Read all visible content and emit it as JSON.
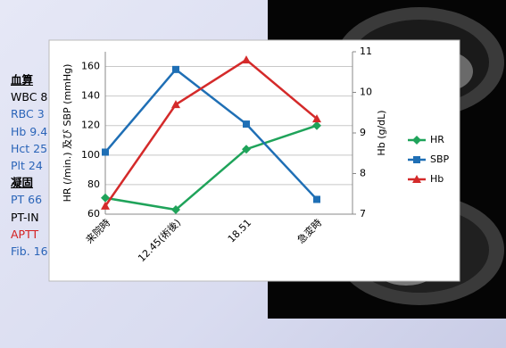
{
  "slide_text": [
    {
      "text": "血算",
      "color": "#000000",
      "heading": true
    },
    {
      "text": "WBC 8",
      "color": "#000000"
    },
    {
      "text": "RBC 3",
      "color": "#2a64b8"
    },
    {
      "text": "Hb 9.4",
      "color": "#2a64b8"
    },
    {
      "text": "Hct 25",
      "color": "#2a64b8"
    },
    {
      "text": "Plt 24",
      "color": "#2a64b8"
    },
    {
      "text": "凝固",
      "color": "#000000",
      "heading": true
    },
    {
      "text": "PT 66",
      "color": "#2a64b8"
    },
    {
      "text": "PT-IN",
      "color": "#000000"
    },
    {
      "text": "APTT",
      "color": "#d42020"
    },
    {
      "text": "Fib. 16",
      "color": "#2a64b8"
    }
  ],
  "chart_data": {
    "type": "line",
    "categories": [
      "来院時",
      "12.45(術後)",
      "18.51",
      "急変時"
    ],
    "ylabel": "HR (/min.) 及び SBP (mmHg)",
    "y2label": "Hb (g/dL)",
    "ylim": [
      60,
      170
    ],
    "yticks": [
      60,
      80,
      100,
      120,
      140,
      160
    ],
    "y2lim": [
      7,
      11
    ],
    "y2ticks": [
      7,
      8,
      9,
      10,
      11
    ],
    "grid": true,
    "legend": "right",
    "series": [
      {
        "name": "HR",
        "color": "#1fa35a",
        "marker": "diamond",
        "values": [
          71,
          63,
          104,
          120
        ]
      },
      {
        "name": "SBP",
        "color": "#1f6fb5",
        "marker": "square",
        "values": [
          102,
          158,
          121,
          70
        ]
      },
      {
        "name": "Hb",
        "color": "#d42a2a",
        "marker": "triangle",
        "axis": "y2",
        "values": [
          7.2,
          9.7,
          10.8,
          9.35
        ]
      }
    ]
  }
}
